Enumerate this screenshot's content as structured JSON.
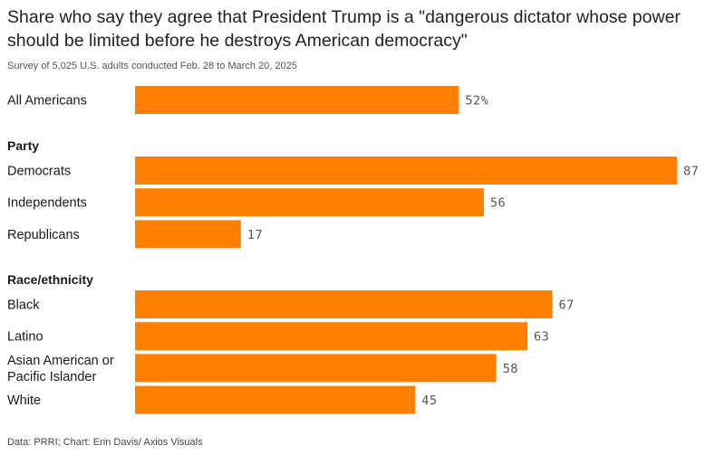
{
  "colors": {
    "bar": "#ff7f00",
    "text": "#1a1a1a",
    "value_text": "#555555"
  },
  "chart_data": {
    "type": "bar",
    "orientation": "horizontal",
    "title": "Share who say they agree that President Trump is a \"dangerous dictator whose power should be limited before he destroys American democracy\"",
    "subtitle": "Survey of 5,025 U.S. adults conducted Feb. 28 to March 20, 2025",
    "source": "Data: PRRI; Chart: Erin Davis/ Axios Visuals",
    "xlim": [
      0,
      87
    ],
    "unit": "%",
    "groups": [
      {
        "label": "",
        "rows": [
          {
            "category": [
              "All Americans"
            ],
            "value": 52,
            "value_label": "52%"
          }
        ]
      },
      {
        "label": "Party",
        "rows": [
          {
            "category": [
              "Democrats"
            ],
            "value": 87,
            "value_label": "87"
          },
          {
            "category": [
              "Independents"
            ],
            "value": 56,
            "value_label": "56"
          },
          {
            "category": [
              "Republicans"
            ],
            "value": 17,
            "value_label": "17"
          }
        ]
      },
      {
        "label": "Race/ethnicity",
        "rows": [
          {
            "category": [
              "Black"
            ],
            "value": 67,
            "value_label": "67"
          },
          {
            "category": [
              "Latino"
            ],
            "value": 63,
            "value_label": "63"
          },
          {
            "category": [
              "Asian American or",
              "Pacific Islander"
            ],
            "value": 58,
            "value_label": "58"
          },
          {
            "category": [
              "White"
            ],
            "value": 45,
            "value_label": "45"
          }
        ]
      }
    ]
  }
}
